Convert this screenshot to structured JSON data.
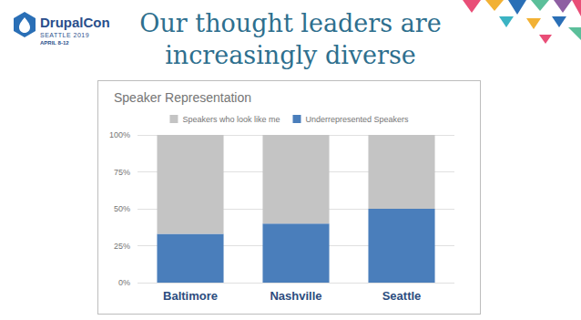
{
  "slide": {
    "title": "Our thought leaders are increasingly diverse",
    "logo": {
      "name": "DrupalCon",
      "city": "SEATTLE 2019",
      "dates": "APRIL 8-12"
    }
  },
  "chart_data": {
    "type": "bar",
    "title": "Speaker Representation",
    "categories": [
      "Baltimore",
      "Nashville",
      "Seattle"
    ],
    "series": [
      {
        "name": "Speakers who look like me",
        "color": "#c4c4c4",
        "values": [
          67,
          60,
          50
        ]
      },
      {
        "name": "Underrepresented Speakers",
        "color": "#4a7ebb",
        "values": [
          33,
          40,
          50
        ]
      }
    ],
    "stacked": true,
    "ylim": [
      0,
      100
    ],
    "yticks": [
      {
        "value": 0,
        "label": "0%"
      },
      {
        "value": 25,
        "label": "25%"
      },
      {
        "value": 50,
        "label": "50%"
      },
      {
        "value": 75,
        "label": "75%"
      },
      {
        "value": 100,
        "label": "100%"
      }
    ],
    "grid": true,
    "legend": "top"
  }
}
